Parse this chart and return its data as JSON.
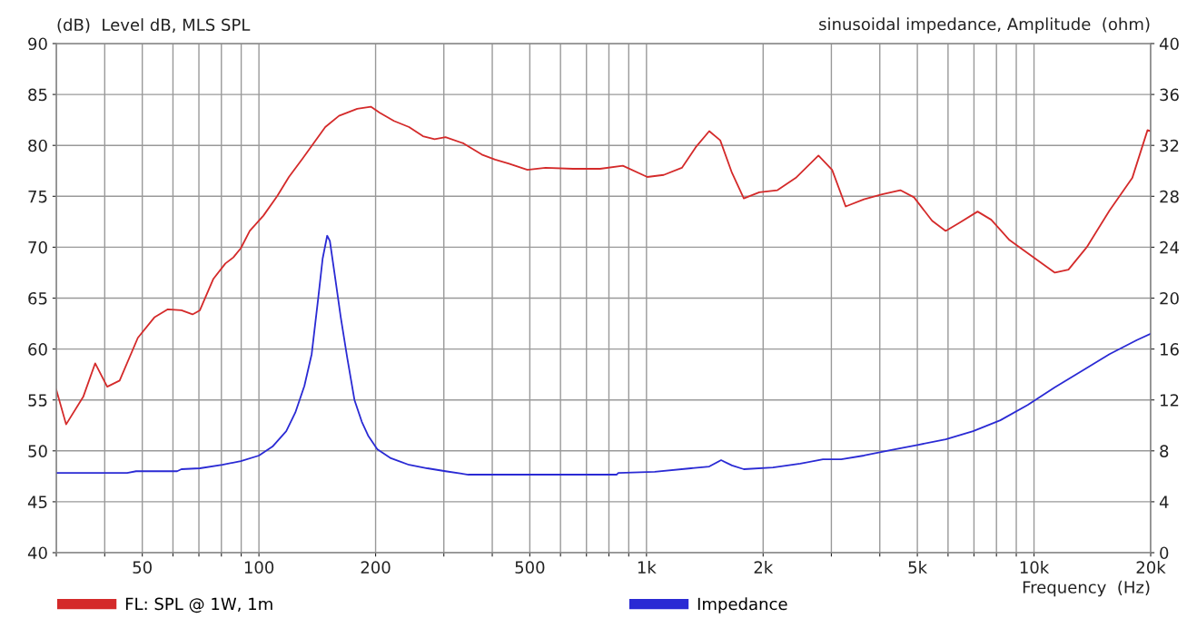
{
  "chart_data": {
    "type": "line",
    "ylabel": "(dB)  Level dB, MLS SPL",
    "y2label": "sinusoidal impedance, Amplitude  (ohm)",
    "xlabel": "Frequency  (Hz)",
    "log": "x",
    "grid": true,
    "legend": "bottom",
    "marker": "none",
    "line_style": "solid",
    "xlim": [
      30,
      20000
    ],
    "xticks": [
      {
        "value": 30,
        "label": null
      },
      {
        "value": 40,
        "label": null
      },
      50,
      {
        "value": 60,
        "label": null
      },
      {
        "value": 70,
        "label": null
      },
      {
        "value": 80,
        "label": null
      },
      {
        "value": 90,
        "label": null
      },
      100,
      200,
      {
        "value": 300,
        "label": null
      },
      {
        "value": 400,
        "label": null
      },
      500,
      {
        "value": 600,
        "label": null
      },
      {
        "value": 700,
        "label": null
      },
      {
        "value": 800,
        "label": null
      },
      {
        "value": 900,
        "label": null
      },
      {
        "value": 1000,
        "label": "1k"
      },
      {
        "value": 2000,
        "label": "2k"
      },
      {
        "value": 3000,
        "label": null
      },
      {
        "value": 4000,
        "label": null
      },
      {
        "value": 5000,
        "label": "5k"
      },
      {
        "value": 6000,
        "label": null
      },
      {
        "value": 7000,
        "label": null
      },
      {
        "value": 8000,
        "label": null
      },
      {
        "value": 9000,
        "label": null
      },
      {
        "value": 10000,
        "label": "10k"
      },
      {
        "value": 20000,
        "label": "20k"
      }
    ],
    "ylim": [
      40,
      90
    ],
    "yticks": [
      40,
      45,
      50,
      55,
      60,
      65,
      70,
      75,
      80,
      85,
      90
    ],
    "y2lim": [
      0,
      40
    ],
    "y2ticks": [
      0,
      4,
      8,
      12,
      16,
      20,
      24,
      28,
      32,
      36,
      40
    ],
    "series": [
      {
        "name": "FL: SPL @ 1W, 1m",
        "color": "#d42a2a",
        "x": [
          30,
          31.8,
          35.2,
          37.8,
          40.6,
          43.7,
          48.7,
          53.7,
          58.2,
          63.1,
          67.4,
          70.4,
          76.3,
          81.9,
          85.9,
          89.8,
          94.7,
          102.7,
          111.4,
          119.5,
          129.6,
          138.3,
          148.3,
          160.9,
          179.3,
          194.4,
          205,
          223,
          244,
          265,
          284,
          303,
          337,
          376,
          407,
          442,
          493,
          549,
          646,
          759,
          869,
          1005,
          1108,
          1234,
          1339,
          1452,
          1550,
          1662,
          1783,
          1955,
          2178,
          2427,
          2778,
          3013,
          3266,
          3640,
          4055,
          4518,
          4900,
          5458,
          5916,
          6420,
          7152,
          7755,
          8645,
          9890,
          11320,
          12270,
          13680,
          15660,
          17930,
          19630,
          20000
        ],
        "values": [
          56.0,
          52.6,
          55.3,
          58.6,
          56.3,
          56.9,
          61.1,
          63.1,
          63.9,
          63.8,
          63.4,
          63.8,
          66.9,
          68.4,
          69.0,
          69.9,
          71.6,
          73.1,
          75.0,
          76.9,
          78.7,
          80.2,
          81.8,
          82.9,
          83.6,
          83.8,
          83.2,
          82.4,
          81.8,
          80.9,
          80.6,
          80.8,
          80.2,
          79.1,
          78.6,
          78.2,
          77.6,
          77.8,
          77.7,
          77.7,
          78.0,
          76.9,
          77.1,
          77.8,
          79.8,
          81.4,
          80.5,
          77.3,
          74.8,
          75.4,
          75.6,
          76.8,
          79.0,
          77.6,
          74.0,
          74.7,
          75.2,
          75.6,
          74.9,
          72.6,
          71.6,
          72.4,
          73.5,
          72.7,
          70.7,
          69.1,
          67.5,
          67.8,
          70.0,
          73.6,
          76.8,
          81.5,
          81.4
        ]
      },
      {
        "name": "Impedance",
        "color": "#2a2ad4",
        "axis": "y2",
        "x": [
          30,
          45.7,
          48.2,
          61.5,
          63.1,
          70.4,
          80.5,
          89.8,
          100,
          108.4,
          117.6,
          124.1,
          131.0,
          136.8,
          142.1,
          146.0,
          150.0,
          152.4,
          156.6,
          162.6,
          169.0,
          176.4,
          184.2,
          191.3,
          202,
          219,
          244,
          272,
          303,
          347,
          549,
          837,
          846,
          1050,
          1303,
          1452,
          1558,
          1662,
          1783,
          2120,
          2493,
          2853,
          3179,
          3640,
          4281,
          5035,
          5916,
          6962,
          8185,
          9630,
          11320,
          13320,
          15660,
          18420,
          20000
        ],
        "values": [
          6.27,
          6.27,
          6.4,
          6.4,
          6.56,
          6.63,
          6.9,
          7.2,
          7.63,
          8.34,
          9.55,
          11.0,
          13.1,
          15.6,
          19.9,
          23.1,
          24.9,
          24.5,
          22.0,
          18.5,
          15.3,
          12.0,
          10.3,
          9.2,
          8.13,
          7.42,
          6.9,
          6.63,
          6.4,
          6.13,
          6.13,
          6.13,
          6.27,
          6.35,
          6.63,
          6.77,
          7.27,
          6.85,
          6.56,
          6.7,
          6.99,
          7.34,
          7.34,
          7.63,
          8.06,
          8.48,
          8.91,
          9.55,
          10.4,
          11.6,
          13.0,
          14.3,
          15.6,
          16.7,
          17.2
        ]
      }
    ]
  }
}
